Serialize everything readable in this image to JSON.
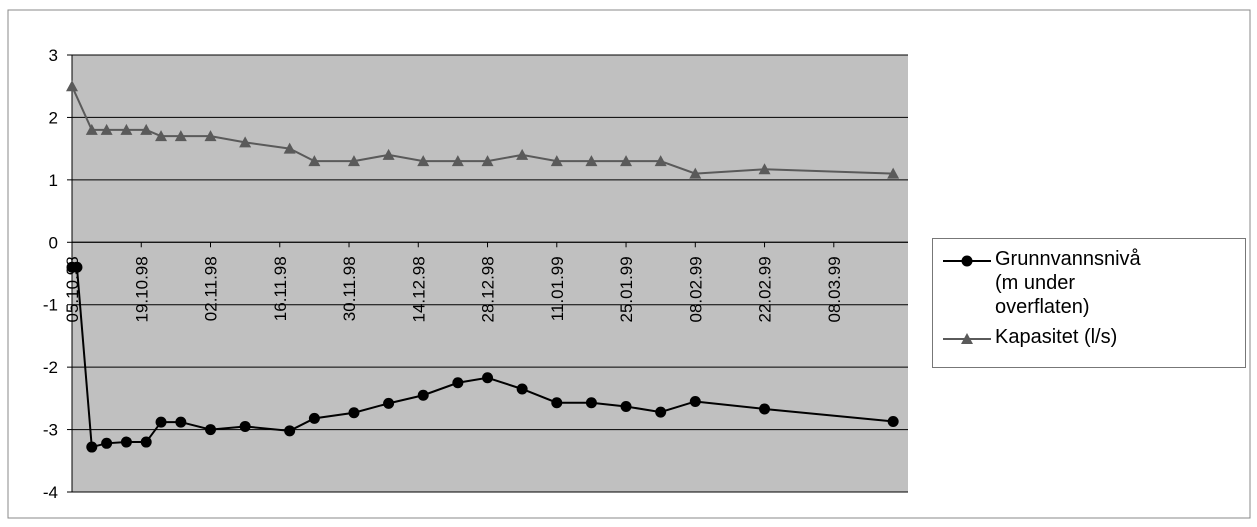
{
  "chart_data": {
    "type": "line",
    "xlim": [
      "1998-10-05",
      "1999-03-23"
    ],
    "xticks": [
      {
        "value": "1998-10-05",
        "label": "05.10.98"
      },
      {
        "value": "1998-10-19",
        "label": "19.10.98"
      },
      {
        "value": "1998-11-02",
        "label": "02.11.98"
      },
      {
        "value": "1998-11-16",
        "label": "16.11.98"
      },
      {
        "value": "1998-11-30",
        "label": "30.11.98"
      },
      {
        "value": "1998-12-14",
        "label": "14.12.98"
      },
      {
        "value": "1998-12-28",
        "label": "28.12.98"
      },
      {
        "value": "1999-01-11",
        "label": "11.01.99"
      },
      {
        "value": "1999-01-25",
        "label": "25.01.99"
      },
      {
        "value": "1999-02-08",
        "label": "08.02.99"
      },
      {
        "value": "1999-02-22",
        "label": "22.02.99"
      },
      {
        "value": "1999-03-08",
        "label": "08.03.99"
      }
    ],
    "ylim": [
      -4,
      3
    ],
    "yticks": [
      -4,
      -3,
      -2,
      -1,
      0,
      1,
      2,
      3
    ],
    "grid": true,
    "legend": "right",
    "series": [
      {
        "name": "Grunnvannsnivå (m under overflaten)",
        "color": "#000000",
        "marker": "circle",
        "x": [
          "1998-10-05",
          "1998-10-06",
          "1998-10-09",
          "1998-10-12",
          "1998-10-16",
          "1998-10-20",
          "1998-10-23",
          "1998-10-27",
          "1998-11-02",
          "1998-11-09",
          "1998-11-18",
          "1998-11-23",
          "1998-12-01",
          "1998-12-08",
          "1998-12-15",
          "1998-12-22",
          "1998-12-28",
          "1999-01-04",
          "1999-01-11",
          "1999-01-18",
          "1999-01-25",
          "1999-02-01",
          "1999-02-08",
          "1999-02-22",
          "1999-03-20"
        ],
        "values": [
          -0.4,
          -0.4,
          -3.28,
          -3.22,
          -3.2,
          -3.2,
          -2.88,
          -2.88,
          -3.0,
          -2.95,
          -3.02,
          -2.82,
          -2.73,
          -2.58,
          -2.45,
          -2.25,
          -2.17,
          -2.35,
          -2.57,
          -2.57,
          -2.63,
          -2.72,
          -2.55,
          -2.67,
          -2.87
        ]
      },
      {
        "name": "Kapasitet (l/s)",
        "color": "#5a5a5a",
        "marker": "triangle",
        "x": [
          "1998-10-05",
          "1998-10-09",
          "1998-10-12",
          "1998-10-16",
          "1998-10-20",
          "1998-10-23",
          "1998-10-27",
          "1998-11-02",
          "1998-11-09",
          "1998-11-18",
          "1998-11-23",
          "1998-12-01",
          "1998-12-08",
          "1998-12-15",
          "1998-12-22",
          "1998-12-28",
          "1999-01-04",
          "1999-01-11",
          "1999-01-18",
          "1999-01-25",
          "1999-02-01",
          "1999-02-08",
          "1999-02-22",
          "1999-03-20"
        ],
        "values": [
          2.5,
          1.8,
          1.8,
          1.8,
          1.8,
          1.7,
          1.7,
          1.7,
          1.6,
          1.5,
          1.3,
          1.3,
          1.4,
          1.3,
          1.3,
          1.3,
          1.4,
          1.3,
          1.3,
          1.3,
          1.3,
          1.1,
          1.17,
          1.1
        ]
      }
    ]
  }
}
